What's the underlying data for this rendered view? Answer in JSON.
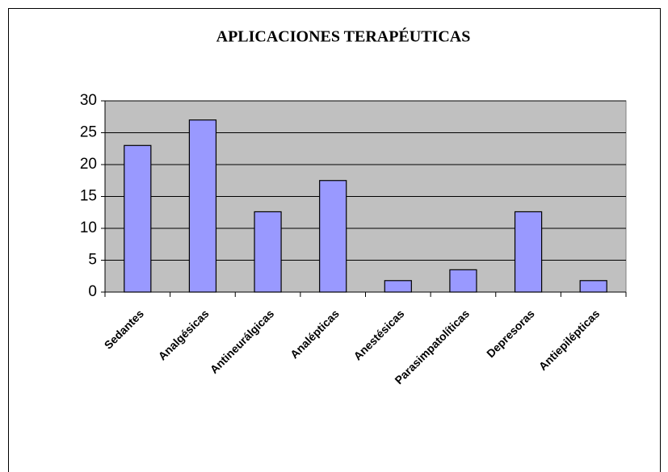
{
  "chart_data": {
    "type": "bar",
    "title": "APLICACIONES TERAPÉUTICAS",
    "categories": [
      "Sedantes",
      "Analgésicas",
      "Antineurálgicas",
      "Analépticas",
      "Anestésicas",
      "Parasimpatolíticas",
      "Depresoras",
      "Antiepilépticas"
    ],
    "values": [
      23,
      27,
      12.6,
      17.5,
      1.8,
      3.5,
      12.6,
      1.8
    ],
    "color": "#9999ff",
    "ylim": [
      0,
      30
    ],
    "yticks": [
      0,
      5,
      10,
      15,
      20,
      25,
      30
    ],
    "grid": true
  }
}
